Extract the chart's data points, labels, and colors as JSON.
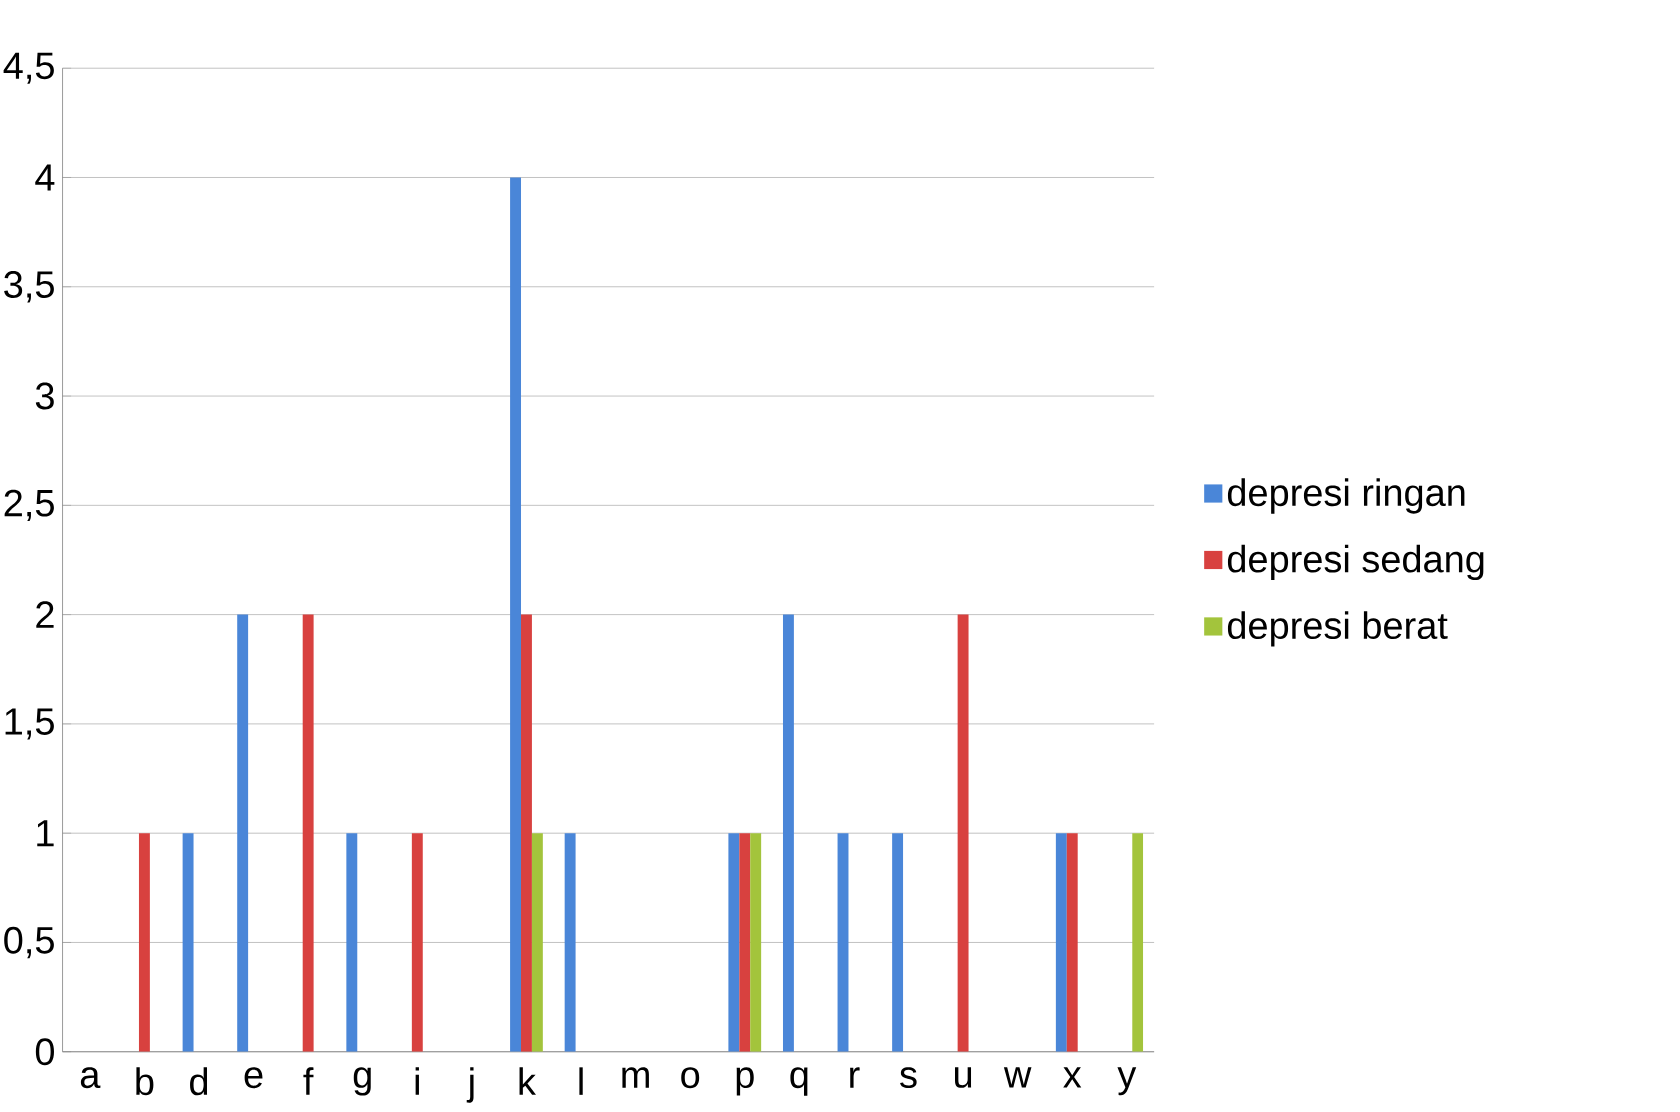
{
  "chart_data": {
    "type": "bar",
    "categories": [
      "a",
      "b",
      "d",
      "e",
      "f",
      "g",
      "i",
      "j",
      "k",
      "l",
      "m",
      "o",
      "p",
      "q",
      "r",
      "s",
      "u",
      "w",
      "x",
      "y"
    ],
    "series": [
      {
        "name": "depresi ringan",
        "color": "#4a86d8",
        "values": [
          0,
          0,
          1,
          2,
          0,
          1,
          0,
          0,
          4,
          1,
          0,
          0,
          1,
          2,
          1,
          1,
          0,
          0,
          1,
          0
        ]
      },
      {
        "name": "depresi sedang",
        "color": "#d8413f",
        "values": [
          0,
          1,
          0,
          0,
          2,
          0,
          1,
          0,
          2,
          0,
          0,
          0,
          1,
          0,
          0,
          0,
          2,
          0,
          1,
          0
        ]
      },
      {
        "name": "depresi berat",
        "color": "#a3c43c",
        "values": [
          0,
          0,
          0,
          0,
          0,
          0,
          0,
          0,
          1,
          0,
          0,
          0,
          1,
          0,
          0,
          0,
          0,
          0,
          0,
          1
        ]
      }
    ],
    "ylim": [
      0,
      4.5
    ],
    "yticks": [
      0,
      {
        "value": 0.5,
        "label": "0,5"
      },
      1,
      {
        "value": 1.5,
        "label": "1,5"
      },
      2,
      {
        "value": 2.5,
        "label": "2,5"
      },
      3,
      {
        "value": 3.5,
        "label": "3,5"
      },
      4,
      {
        "value": 4.5,
        "label": "4,5"
      }
    ],
    "grid": "y",
    "legend": "right"
  }
}
